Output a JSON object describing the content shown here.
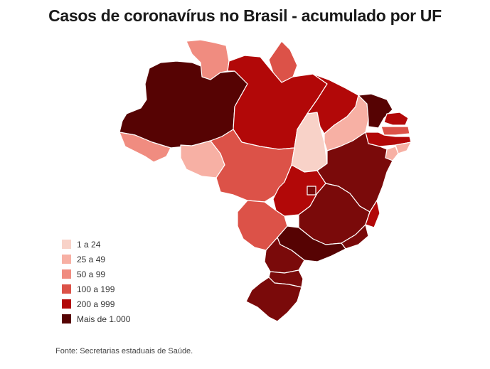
{
  "title": "Casos de coronavírus no Brasil - acumulado por UF",
  "source": "Fonte: Secretarias estaduais de Saúde.",
  "colors": {
    "c1": "#f8d2c8",
    "c2": "#f7b0a4",
    "c3": "#f08c80",
    "c4": "#dc5248",
    "c5": "#b20808",
    "c6": "#7a0a0a",
    "c7": "#560303"
  },
  "legend": [
    {
      "label": "1 a 24",
      "color": "#f8d2c8"
    },
    {
      "label": "25 a 49",
      "color": "#f7b0a4"
    },
    {
      "label": "50 a 99",
      "color": "#f08c80"
    },
    {
      "label": "100 a 199",
      "color": "#dc5248"
    },
    {
      "label": "200 a 999",
      "color": "#b20808"
    },
    {
      "label": "Mais de 1.000",
      "color": "#560303"
    }
  ],
  "states": [
    {
      "uf": "AM",
      "cls": "c7"
    },
    {
      "uf": "RR",
      "cls": "c3"
    },
    {
      "uf": "AP",
      "cls": "c4"
    },
    {
      "uf": "PA",
      "cls": "c5"
    },
    {
      "uf": "AC",
      "cls": "c3"
    },
    {
      "uf": "RO",
      "cls": "c2"
    },
    {
      "uf": "MT",
      "cls": "c4"
    },
    {
      "uf": "TO",
      "cls": "c1"
    },
    {
      "uf": "MA",
      "cls": "c5"
    },
    {
      "uf": "PI",
      "cls": "c2"
    },
    {
      "uf": "CE",
      "cls": "c7"
    },
    {
      "uf": "RN",
      "cls": "c5"
    },
    {
      "uf": "PB",
      "cls": "c4"
    },
    {
      "uf": "PE",
      "cls": "c5"
    },
    {
      "uf": "AL",
      "cls": "c2"
    },
    {
      "uf": "SE",
      "cls": "c2"
    },
    {
      "uf": "BA",
      "cls": "c6"
    },
    {
      "uf": "GO",
      "cls": "c5"
    },
    {
      "uf": "DF",
      "cls": "c6"
    },
    {
      "uf": "MS",
      "cls": "c4"
    },
    {
      "uf": "MG",
      "cls": "c6"
    },
    {
      "uf": "ES",
      "cls": "c5"
    },
    {
      "uf": "RJ",
      "cls": "c6"
    },
    {
      "uf": "SP",
      "cls": "c7"
    },
    {
      "uf": "PR",
      "cls": "c6"
    },
    {
      "uf": "SC",
      "cls": "c6"
    },
    {
      "uf": "RS",
      "cls": "c6"
    }
  ]
}
